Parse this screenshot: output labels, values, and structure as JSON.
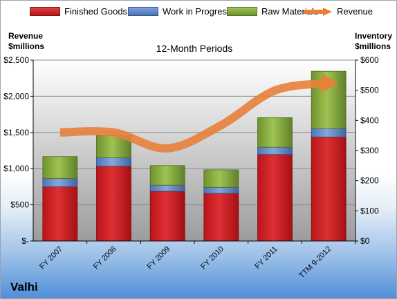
{
  "chart_data": {
    "type": "bar",
    "title": "12-Month Periods",
    "categories": [
      "FY 2007",
      "FY 2008",
      "FY 2009",
      "FY 2010",
      "FY 2011",
      "TTM 9-2012"
    ],
    "series": [
      {
        "name": "Finished Goods",
        "axis": "right",
        "color": "#d62024",
        "values": [
          180,
          248,
          165,
          158,
          287,
          345
        ]
      },
      {
        "name": "Work in Progress",
        "axis": "right",
        "color": "#5b86c8",
        "values": [
          27,
          28,
          20,
          20,
          24,
          28
        ]
      },
      {
        "name": "Raw Materials",
        "axis": "right",
        "color": "#86ab3a",
        "values": [
          73,
          74,
          65,
          58,
          98,
          190
        ]
      },
      {
        "name": "Revenue",
        "axis": "left",
        "type": "line",
        "color": "#e8803a",
        "values": [
          1500,
          1500,
          1280,
          1600,
          2080,
          2180
        ]
      }
    ],
    "left_axis": {
      "label_line1": "Revenue",
      "label_line2": "$millions",
      "ylim": [
        0,
        2500
      ],
      "ticks": [
        0,
        500,
        1000,
        1500,
        2000,
        2500
      ],
      "tick_labels": [
        "$-",
        "$500",
        "$1,000",
        "$1,500",
        "$2,000",
        "$2,500"
      ]
    },
    "right_axis": {
      "label_line1": "Inventory",
      "label_line2": "$millions",
      "ylim": [
        0,
        600
      ],
      "ticks": [
        0,
        100,
        200,
        300,
        400,
        500,
        600
      ],
      "tick_labels": [
        "$0",
        "$100",
        "$200",
        "$300",
        "$400",
        "$500",
        "$600"
      ]
    },
    "grid": true,
    "legend_position": "top"
  },
  "company": "Valhi"
}
